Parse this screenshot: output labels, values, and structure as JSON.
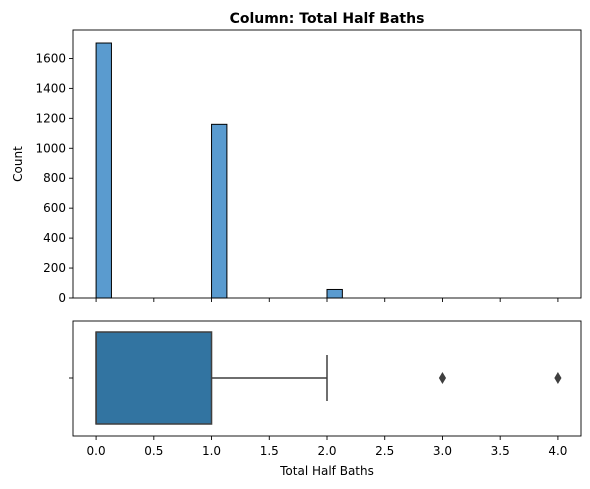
{
  "chart_data": {
    "type": "bar",
    "title": "Column: Total Half Baths",
    "xlabel": "Total Half Baths",
    "ylabel": "Count",
    "xlim": [
      -0.2,
      4.2
    ],
    "ylim": [
      0,
      1790
    ],
    "grid": false,
    "legend": "none",
    "histogram": {
      "bin_width": 0.133,
      "bars": [
        {
          "x": 0,
          "count": 1703
        },
        {
          "x": 1,
          "count": 1160
        },
        {
          "x": 2,
          "count": 57
        }
      ],
      "y_ticks": [
        0,
        200,
        400,
        600,
        800,
        1000,
        1200,
        1400,
        1600
      ],
      "color": "#5a9bcf"
    },
    "boxplot": {
      "min": 0,
      "q1": 0,
      "median": 0,
      "q3": 1,
      "whisker_high": 2,
      "outliers": [
        3,
        4
      ],
      "color": "#3274a1",
      "x_ticks": [
        0.0,
        0.5,
        1.0,
        1.5,
        2.0,
        2.5,
        3.0,
        3.5,
        4.0
      ],
      "x_tick_labels": [
        "0.0",
        "0.5",
        "1.0",
        "1.5",
        "2.0",
        "2.5",
        "3.0",
        "3.5",
        "4.0"
      ]
    }
  }
}
